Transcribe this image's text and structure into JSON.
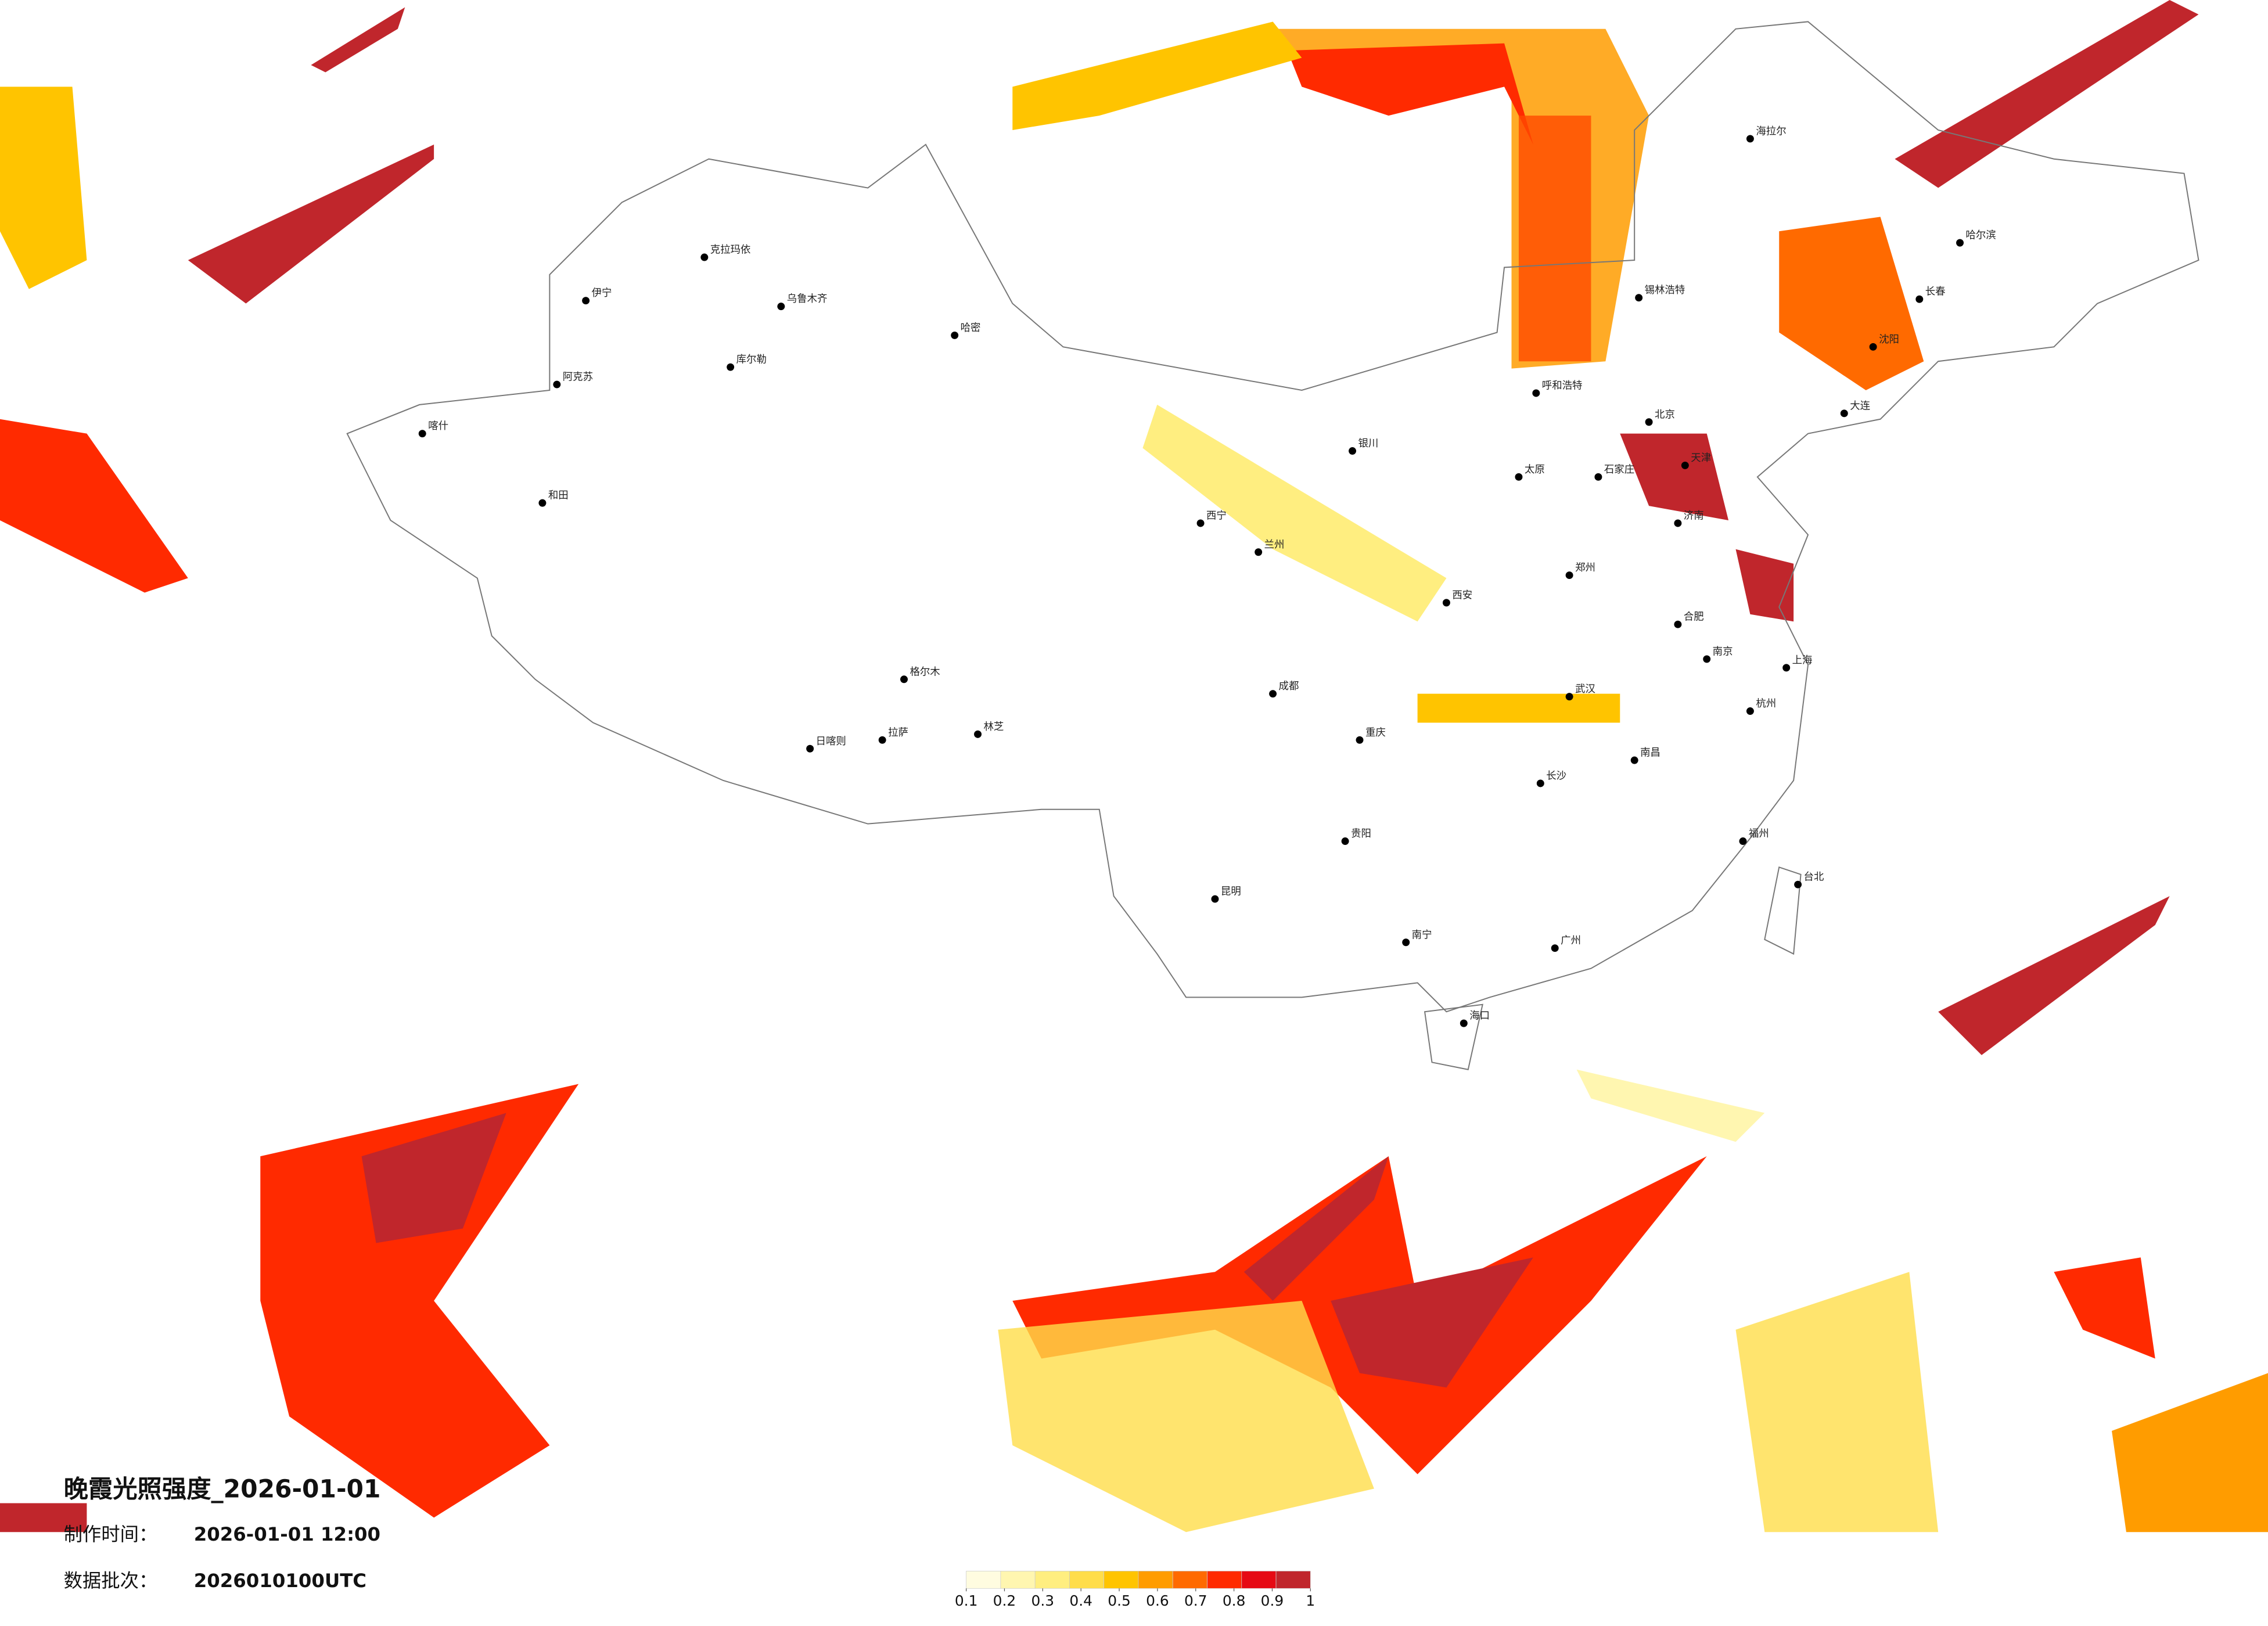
{
  "title": "晚霞光照强度_2026-01-01",
  "info": [
    {
      "label": "制作时间：",
      "value": "2026-01-01 12:00"
    },
    {
      "label": "数据批次：",
      "value": "2026010100UTC"
    }
  ],
  "colorbar": {
    "colors": [
      "#fffce0",
      "#fff6b0",
      "#ffee80",
      "#ffdd4a",
      "#ffc400",
      "#ff9c00",
      "#ff6a00",
      "#ff2a00",
      "#e60a14",
      "#c0262c"
    ],
    "ticks": [
      0.1,
      0.2,
      0.3,
      0.4,
      0.5,
      0.6,
      0.7,
      0.8,
      0.9,
      1
    ]
  },
  "cities": [
    "克拉玛依",
    "乌鲁木齐",
    "哈密",
    "库尔勒",
    "阿克苏",
    "和田",
    "喀什",
    "伊宁",
    "拉萨",
    "日喀则",
    "林芝",
    "格尔木",
    "西宁",
    "兰州",
    "银川",
    "呼和浩特",
    "北京",
    "天津",
    "哈尔滨",
    "长春",
    "沈阳",
    "大连",
    "济南",
    "郑州",
    "西安",
    "成都",
    "重庆",
    "武汉",
    "南京",
    "上海",
    "杭州",
    "长沙",
    "南昌",
    "福州",
    "贵阳",
    "昆明",
    "南宁",
    "广州",
    "海口",
    "台北",
    "海拉尔",
    "锡林浩特",
    "石家庄",
    "太原",
    "合肥"
  ]
}
